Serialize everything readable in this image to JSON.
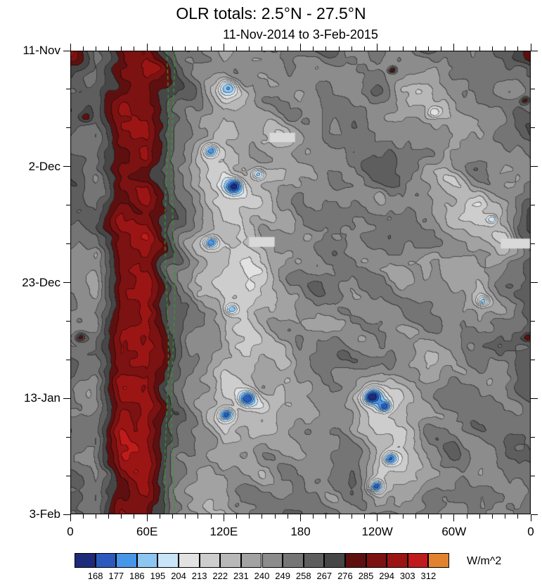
{
  "chart_data": {
    "type": "heatmap",
    "title": "OLR totals: 2.5°N - 27.5°N",
    "subtitle": "11-Nov-2014 to 3-Feb-2015",
    "units": "W/m^2",
    "x_axis": {
      "range_deg": [
        0,
        360
      ],
      "minor_tick_interval_deg": 10,
      "major_ticks": [
        {
          "lon": 0,
          "label": "0"
        },
        {
          "lon": 60,
          "label": "60E"
        },
        {
          "lon": 120,
          "label": "120E"
        },
        {
          "lon": 180,
          "label": "180"
        },
        {
          "lon": 240,
          "label": "120W"
        },
        {
          "lon": 300,
          "label": "60W"
        },
        {
          "lon": 360,
          "label": "0"
        }
      ]
    },
    "y_axis": {
      "range_days": [
        0,
        84
      ],
      "minor_tick_interval_days": 7,
      "major_ticks": [
        {
          "day": 0,
          "label": "11-Nov"
        },
        {
          "day": 21,
          "label": "2-Dec"
        },
        {
          "day": 42,
          "label": "23-Dec"
        },
        {
          "day": 63,
          "label": "13-Jan"
        },
        {
          "day": 84,
          "label": "3-Feb"
        }
      ]
    },
    "colorbar": {
      "levels": [
        168,
        177,
        186,
        195,
        204,
        213,
        222,
        231,
        240,
        249,
        258,
        267,
        276,
        285,
        294,
        303,
        312
      ],
      "colors": [
        "#1e2a7a",
        "#2b5abc",
        "#4896e8",
        "#8ec6f2",
        "#c8e4f8",
        "#e2e2e2",
        "#cdcdcd",
        "#b8b8b8",
        "#a2a2a2",
        "#8c8c8c",
        "#757575",
        "#5e5e5e",
        "#474747",
        "#5e1010",
        "#7c1212",
        "#9c1515",
        "#c01b1b",
        "#e2822e"
      ]
    },
    "missing_color": "#d9d9d9",
    "reference_lines": {
      "color": "#2f9e2f",
      "style": "dashed",
      "lons": [
        75.5,
        80.5
      ]
    },
    "missing_patches": [
      {
        "lon": [
          156,
          176
        ],
        "day": [
          14.9,
          16.6
        ]
      },
      {
        "lon": [
          140,
          160
        ],
        "day": [
          33.8,
          35.6
        ]
      },
      {
        "lon": [
          337,
          360
        ],
        "day": [
          34.1,
          35.9
        ]
      }
    ],
    "features": [
      {
        "lon": 123.5,
        "day": 6.8,
        "olr": 185,
        "r": 12
      },
      {
        "lon": 110.0,
        "day": 18.2,
        "olr": 180,
        "r": 11
      },
      {
        "lon": 128.0,
        "day": 24.6,
        "olr": 162,
        "r": 13
      },
      {
        "lon": 147.0,
        "day": 22.4,
        "olr": 192,
        "r": 9
      },
      {
        "lon": 110.0,
        "day": 34.8,
        "olr": 178,
        "r": 11
      },
      {
        "lon": 126.5,
        "day": 46.9,
        "olr": 188,
        "r": 9
      },
      {
        "lon": 122.0,
        "day": 66.0,
        "olr": 172,
        "r": 11
      },
      {
        "lon": 138.5,
        "day": 63.1,
        "olr": 168,
        "r": 12
      },
      {
        "lon": 236.3,
        "day": 62.8,
        "olr": 158,
        "r": 13
      },
      {
        "lon": 246.0,
        "day": 64.5,
        "olr": 170,
        "r": 10
      },
      {
        "lon": 250.5,
        "day": 74.0,
        "olr": 175,
        "r": 10
      },
      {
        "lon": 239.5,
        "day": 79.0,
        "olr": 172,
        "r": 10
      },
      {
        "lon": 323.0,
        "day": 45.4,
        "olr": 190,
        "r": 8
      },
      {
        "lon": 330.0,
        "day": 30.6,
        "olr": 195,
        "r": 7
      },
      {
        "lon": 285.0,
        "day": 11.2,
        "olr": 205,
        "r": 9
      },
      {
        "lon": 252.0,
        "day": 3.5,
        "olr": 285,
        "r": 5
      },
      {
        "lon": 12.0,
        "day": 12.0,
        "olr": 281,
        "r": 8
      },
      {
        "lon": 8.0,
        "day": 52.0,
        "olr": 280,
        "r": 7
      },
      {
        "lon": 358.0,
        "day": 52.0,
        "olr": 284,
        "r": 7
      },
      {
        "lon": 356.0,
        "day": 9.0,
        "olr": 282,
        "r": 6
      }
    ],
    "field": {
      "lon_step_deg": 20,
      "day_step": 7,
      "lon_start": 0,
      "day_start": 0,
      "values": [
        [
          286,
          262,
          284,
          289,
          268,
          252,
          240,
          250,
          255,
          258,
          252,
          248,
          252,
          246,
          255,
          250,
          255,
          258,
          284
        ],
        [
          262,
          255,
          282,
          291,
          265,
          248,
          228,
          235,
          248,
          252,
          255,
          250,
          255,
          240,
          222,
          250,
          252,
          248,
          255
        ],
        [
          258,
          250,
          285,
          293,
          262,
          242,
          215,
          228,
          225,
          240,
          250,
          252,
          248,
          252,
          248,
          240,
          235,
          250,
          255
        ],
        [
          255,
          252,
          288,
          295,
          260,
          228,
          218,
          225,
          232,
          245,
          248,
          252,
          250,
          255,
          245,
          238,
          252,
          248,
          252
        ],
        [
          258,
          255,
          290,
          296,
          258,
          235,
          218,
          226,
          240,
          248,
          252,
          248,
          245,
          250,
          240,
          230,
          215,
          235,
          262
        ],
        [
          255,
          250,
          292,
          297,
          262,
          238,
          225,
          222,
          235,
          245,
          250,
          255,
          248,
          252,
          245,
          235,
          240,
          228,
          255
        ],
        [
          252,
          248,
          294,
          298,
          260,
          230,
          226,
          218,
          238,
          250,
          255,
          248,
          252,
          245,
          250,
          240,
          232,
          252,
          268
        ],
        [
          255,
          252,
          295,
          299,
          258,
          240,
          230,
          226,
          240,
          252,
          248,
          252,
          245,
          248,
          252,
          245,
          235,
          248,
          272
        ],
        [
          258,
          250,
          294,
          299,
          262,
          245,
          230,
          224,
          235,
          248,
          252,
          250,
          255,
          248,
          240,
          248,
          252,
          245,
          255
        ],
        [
          255,
          252,
          295,
          300,
          260,
          242,
          220,
          222,
          230,
          240,
          245,
          235,
          215,
          228,
          245,
          250,
          248,
          252,
          255
        ],
        [
          252,
          248,
          296,
          300,
          262,
          240,
          222,
          232,
          242,
          250,
          248,
          245,
          230,
          228,
          242,
          250,
          245,
          248,
          252
        ],
        [
          255,
          250,
          295,
          299,
          258,
          245,
          235,
          240,
          245,
          252,
          250,
          248,
          225,
          235,
          248,
          252,
          248,
          250,
          255
        ],
        [
          258,
          252,
          294,
          298,
          260,
          248,
          240,
          245,
          250,
          255,
          252,
          250,
          238,
          245,
          250,
          248,
          252,
          248,
          255
        ]
      ]
    }
  }
}
